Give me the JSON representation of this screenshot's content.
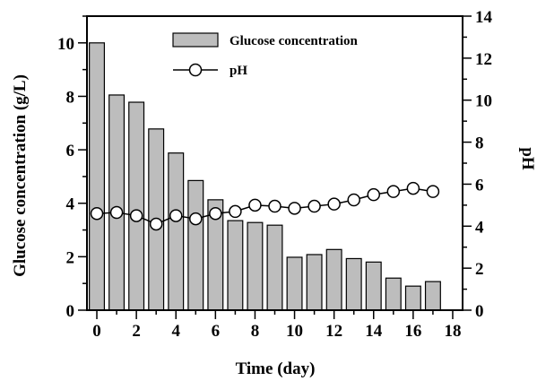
{
  "chart_data": {
    "type": "bar",
    "xlabel": "Time (day)",
    "ylabel": "Glucose concentration (g/L)",
    "y2label": "pH",
    "xlim": [
      -0.5,
      18.5
    ],
    "xticks": [
      0,
      2,
      4,
      6,
      8,
      10,
      12,
      14,
      16,
      18
    ],
    "ylim": [
      0,
      11
    ],
    "yticks": [
      0,
      2,
      4,
      6,
      8,
      10
    ],
    "y2lim": [
      0,
      14
    ],
    "y2ticks": [
      0,
      2,
      4,
      6,
      8,
      10,
      12,
      14
    ],
    "grid": false,
    "legend_position": "top-center",
    "series": [
      {
        "name": "Glucose concentration",
        "type": "bar",
        "axis": "left",
        "color": "#bdbdbd",
        "x": [
          0,
          1,
          2,
          3,
          4,
          5,
          6,
          7,
          8,
          9,
          10,
          11,
          12,
          13,
          14,
          15,
          16,
          17
        ],
        "values": [
          10.0,
          8.05,
          7.78,
          6.78,
          5.88,
          4.85,
          4.13,
          3.35,
          3.28,
          3.18,
          1.98,
          2.08,
          2.27,
          1.93,
          1.8,
          1.2,
          0.9,
          1.07
        ]
      },
      {
        "name": "pH",
        "type": "line",
        "axis": "right",
        "marker": "open-circle",
        "color": "#000000",
        "x": [
          0,
          1,
          2,
          3,
          4,
          5,
          6,
          7,
          8,
          9,
          10,
          11,
          12,
          13,
          14,
          15,
          16,
          17
        ],
        "values": [
          4.6,
          4.65,
          4.5,
          4.1,
          4.5,
          4.35,
          4.6,
          4.7,
          5.0,
          4.95,
          4.85,
          4.95,
          5.05,
          5.25,
          5.5,
          5.65,
          5.8,
          5.65
        ]
      }
    ]
  }
}
